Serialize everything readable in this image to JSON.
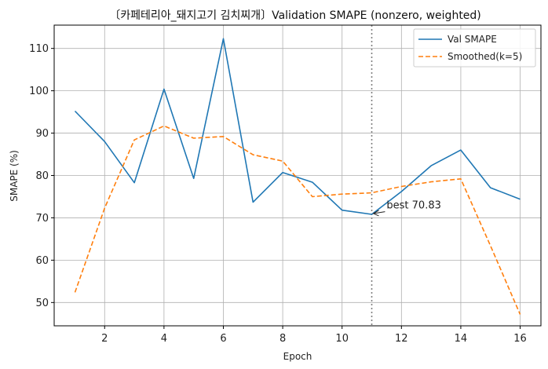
{
  "chart_data": {
    "type": "line",
    "title": "〔카페테리아_돼지고기 김치찌개〕Validation SMAPE (nonzero, weighted)",
    "xlabel": "Epoch",
    "ylabel": "SMAPE (%)",
    "xlim": [
      0.3,
      16.7
    ],
    "ylim": [
      44.5,
      115.5
    ],
    "xticks": [
      2,
      4,
      6,
      8,
      10,
      12,
      14,
      16
    ],
    "yticks": [
      50,
      60,
      70,
      80,
      90,
      100,
      110
    ],
    "grid": true,
    "legend_position": "top-right",
    "x": [
      1,
      2,
      3,
      4,
      5,
      6,
      7,
      8,
      9,
      10,
      11,
      12,
      13,
      14,
      15,
      16
    ],
    "series": [
      {
        "name": "Val SMAPE",
        "color": "#1f77b4",
        "style": "solid",
        "values": [
          95.2,
          88.0,
          78.3,
          100.4,
          79.3,
          112.3,
          73.7,
          80.7,
          78.4,
          71.8,
          70.83,
          76.2,
          82.3,
          86.0,
          77.1,
          74.4
        ]
      },
      {
        "name": "Smoothed(k=5)",
        "color": "#ff7f0e",
        "style": "dashed",
        "values": [
          52.4,
          72.3,
          88.4,
          91.7,
          88.8,
          89.2,
          84.9,
          83.4,
          75.0,
          75.6,
          75.9,
          77.4,
          78.5,
          79.2,
          63.4,
          47.2
        ]
      }
    ],
    "vline": {
      "x": 11,
      "color": "#808080",
      "style": "dotted"
    },
    "annotation": {
      "text": "best 70.83",
      "x": 11,
      "y": 70.83,
      "text_x": 11.5,
      "text_y": 72.2
    }
  }
}
